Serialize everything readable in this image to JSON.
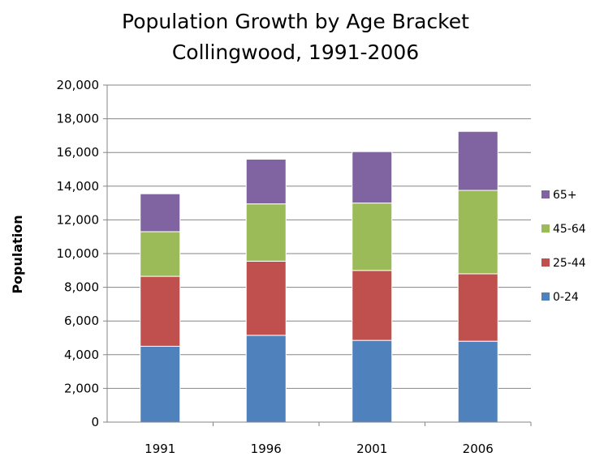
{
  "chart_data": {
    "type": "bar",
    "stacked": true,
    "title_lines": [
      "Population Growth by Age Bracket",
      "Collingwood, 1991-2006"
    ],
    "xlabel": "",
    "ylabel": "Population",
    "categories": [
      "1991",
      "1996",
      "2001",
      "2006"
    ],
    "ylim": [
      0,
      20000
    ],
    "ytick_values": [
      0,
      2000,
      4000,
      6000,
      8000,
      10000,
      12000,
      14000,
      16000,
      18000,
      20000
    ],
    "ytick_labels": [
      "0",
      "2,000",
      "4,000",
      "6,000",
      "8,000",
      "10,000",
      "12,000",
      "14,000",
      "16,000",
      "18,000",
      "20,000"
    ],
    "grid": "horizontal",
    "legend_position": "right",
    "series": [
      {
        "name": "0-24",
        "color": "#4F81BD",
        "values": [
          4500,
          5150,
          4850,
          4800
        ]
      },
      {
        "name": "25-44",
        "color": "#C0504D",
        "values": [
          4150,
          4400,
          4150,
          4000
        ]
      },
      {
        "name": "45-64",
        "color": "#9BBB59",
        "values": [
          2650,
          3400,
          4000,
          4950
        ]
      },
      {
        "name": "65+",
        "color": "#8064A2",
        "values": [
          2250,
          2650,
          3050,
          3500
        ]
      }
    ]
  }
}
